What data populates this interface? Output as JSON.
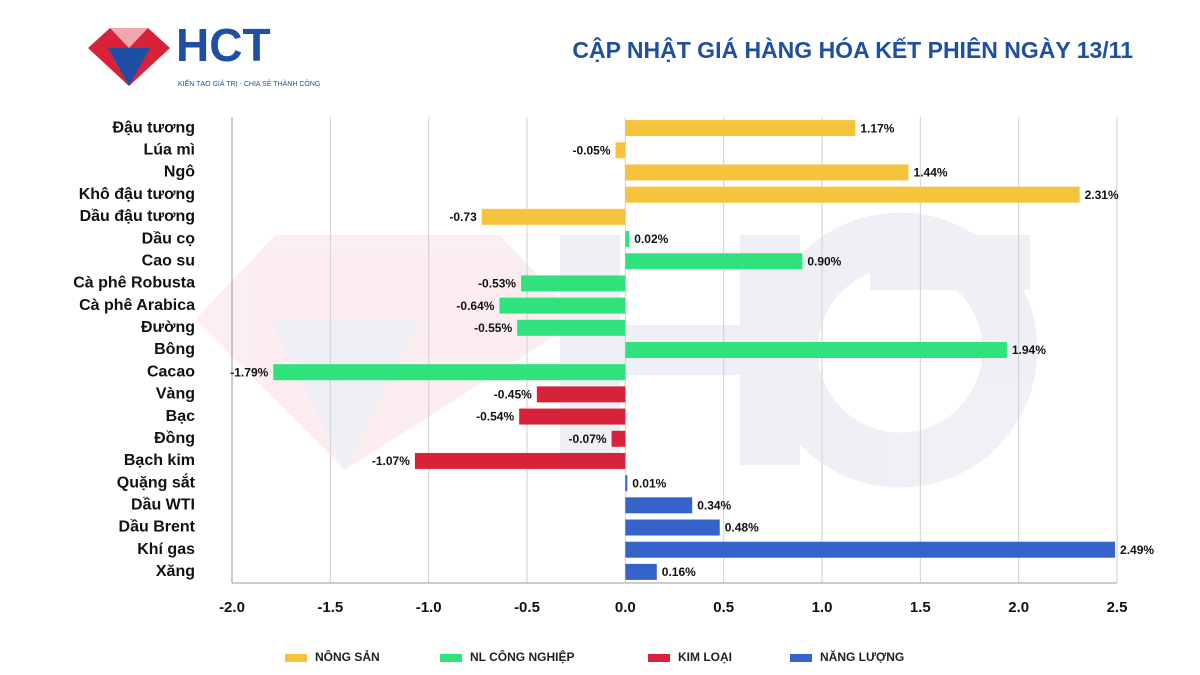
{
  "logo": {
    "text": "HCT",
    "tagline": "KIẾN TẠO GIÁ TRỊ - CHIA SẺ THÀNH CÔNG"
  },
  "chart_data": {
    "type": "bar",
    "orientation": "horizontal",
    "stacked": false,
    "title": "CẬP NHẬT GIÁ HÀNG HÓA KẾT PHIÊN NGÀY 13/11",
    "categories": [
      "Đậu tương",
      "Lúa mì",
      "Ngô",
      "Khô đậu tương",
      "Dầu đậu tương",
      "Dầu cọ",
      "Cao su",
      "Cà phê Robusta",
      "Cà phê Arabica",
      "Đường",
      "Bông",
      "Cacao",
      "Vàng",
      "Bạc",
      "Đồng",
      "Bạch kim",
      "Quặng sắt",
      "Dầu WTI",
      "Dầu Brent",
      "Khí gas",
      "Xăng"
    ],
    "series": [
      {
        "name": "NÔNG SẢN",
        "color": "#f5c43c",
        "values": [
          1.17,
          -0.05,
          1.44,
          2.31,
          -0.73,
          null,
          null,
          null,
          null,
          null,
          null,
          null,
          null,
          null,
          null,
          null,
          null,
          null,
          null,
          null,
          null
        ],
        "value_labels": [
          "1.17%",
          "-0.05%",
          "1.44%",
          "2.31%",
          "-0.73",
          null,
          null,
          null,
          null,
          null,
          null,
          null,
          null,
          null,
          null,
          null,
          null,
          null,
          null,
          null,
          null
        ]
      },
      {
        "name": "NL CÔNG NGHIỆP",
        "color": "#2fe27c",
        "values": [
          null,
          null,
          null,
          null,
          null,
          0.02,
          0.9,
          -0.53,
          -0.64,
          -0.55,
          1.94,
          -1.79,
          null,
          null,
          null,
          null,
          null,
          null,
          null,
          null,
          null
        ],
        "value_labels": [
          null,
          null,
          null,
          null,
          null,
          "0.02%",
          "0.90%",
          "-0.53%",
          "-0.64%",
          "-0.55%",
          "1.94%",
          "-1.79%",
          null,
          null,
          null,
          null,
          null,
          null,
          null,
          null,
          null
        ]
      },
      {
        "name": "KIM LOẠI",
        "color": "#d8223a",
        "values": [
          null,
          null,
          null,
          null,
          null,
          null,
          null,
          null,
          null,
          null,
          null,
          null,
          -0.45,
          -0.54,
          -0.07,
          -1.07,
          null,
          null,
          null,
          null,
          null
        ],
        "value_labels": [
          null,
          null,
          null,
          null,
          null,
          null,
          null,
          null,
          null,
          null,
          null,
          null,
          "-0.45%",
          "-0.54%",
          "-0.07%",
          "-1.07%",
          null,
          null,
          null,
          null,
          null
        ]
      },
      {
        "name": "NĂNG LƯỢNG",
        "color": "#3563cc",
        "values": [
          null,
          null,
          null,
          null,
          null,
          null,
          null,
          null,
          null,
          null,
          null,
          null,
          null,
          null,
          null,
          null,
          0.01,
          0.34,
          0.48,
          2.49,
          0.16
        ],
        "value_labels": [
          null,
          null,
          null,
          null,
          null,
          null,
          null,
          null,
          null,
          null,
          null,
          null,
          null,
          null,
          null,
          null,
          "0.01%",
          "0.34%",
          "0.48%",
          "2.49%",
          "0.16%"
        ]
      }
    ],
    "xlim": [
      -2,
      2.5
    ],
    "xticks": [
      {
        "value": -2,
        "label": "-2.0"
      },
      -1.5,
      {
        "value": -1,
        "label": "-1.0"
      },
      -0.5,
      {
        "value": 0,
        "label": "0.0"
      },
      0.5,
      {
        "value": 1,
        "label": "1.0"
      },
      1.5,
      {
        "value": 2,
        "label": "2.0"
      },
      2.5
    ],
    "grid": true,
    "legend": "bottom"
  }
}
